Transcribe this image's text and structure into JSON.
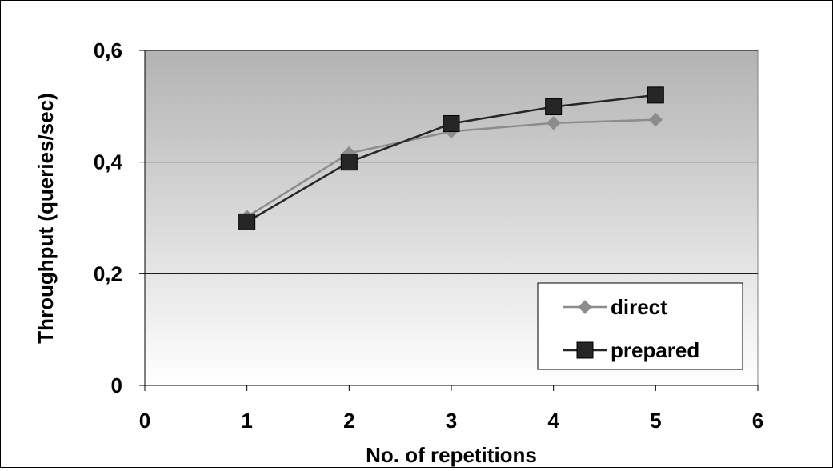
{
  "chart_data": {
    "type": "line",
    "title": "",
    "xlabel": "No. of repetitions",
    "ylabel": "Throughput (queries/sec)",
    "xlim": [
      0,
      6
    ],
    "ylim": [
      0,
      0.6
    ],
    "x_ticks": [
      "0",
      "1",
      "2",
      "3",
      "4",
      "5",
      "6"
    ],
    "y_ticks": [
      "0",
      "0,2",
      "0,4",
      "0,6"
    ],
    "grid": "horizontal major gridlines",
    "legend_position": "bottom-right",
    "background": "gradient grey (top) to white (bottom)",
    "x": [
      1,
      2,
      3,
      4,
      5
    ],
    "series": [
      {
        "name": "direct",
        "marker": "diamond",
        "color": "#8c8c8c",
        "values": [
          0.302,
          0.416,
          0.455,
          0.47,
          0.476
        ]
      },
      {
        "name": "prepared",
        "marker": "square",
        "color": "#262626",
        "values": [
          0.293,
          0.4,
          0.469,
          0.499,
          0.52
        ]
      }
    ]
  }
}
